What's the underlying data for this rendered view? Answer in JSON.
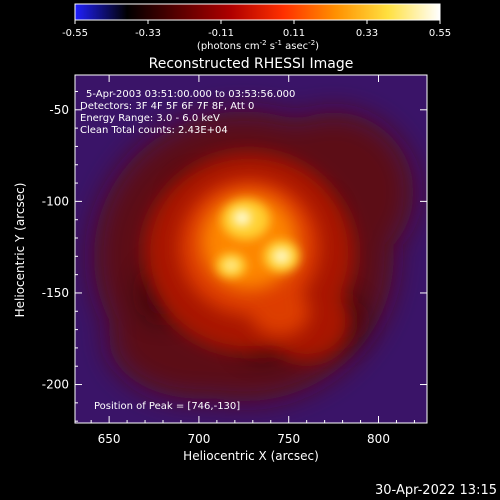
{
  "colorbar": {
    "ticks": [
      "-0.55",
      "-0.33",
      "-0.11",
      "0.11",
      "0.33",
      "0.55"
    ],
    "units_prefix": "(photons cm",
    "units_exp1": "-2",
    "units_mid": " s",
    "units_exp2": "-1",
    "units_mid2": " asec",
    "units_exp3": "-2",
    "units_suffix": ")",
    "colors": [
      "#2020ff",
      "#000000",
      "#5a0000",
      "#b00000",
      "#ff3000",
      "#ff9000",
      "#ffe040",
      "#ffffff"
    ]
  },
  "plot": {
    "title": "Reconstructed RHESSI Image",
    "annotations": [
      "5-Apr-2003 03:51:00.000 to 03:53:56.000",
      "Detectors: 3F 4F 5F 6F 7F 8F, Att 0",
      "Energy Range: 3.0 - 6.0 keV",
      "Clean     Total counts: 2.43E+04"
    ],
    "peak_label": "Position of Peak = [746,-130]"
  },
  "footer": {
    "timestamp": "30-Apr-2022 13:15"
  },
  "chart_data": {
    "type": "heatmap",
    "title": "Reconstructed RHESSI Image",
    "xlabel": "Heliocentric X (arcsec)",
    "ylabel": "Heliocentric Y (arcsec)",
    "xlim": [
      631,
      827
    ],
    "ylim": [
      -221,
      -31
    ],
    "xticks": [
      650,
      700,
      750,
      800
    ],
    "yticks": [
      -50,
      -100,
      -150,
      -200
    ],
    "colorbar_range": [
      -0.55,
      0.55
    ],
    "peak": [
      746,
      -130
    ],
    "sources": [
      {
        "x": 724,
        "y": -109,
        "rel": 1.0
      },
      {
        "x": 746,
        "y": -130,
        "rel": 0.95
      },
      {
        "x": 718,
        "y": -135,
        "rel": 0.7
      }
    ]
  }
}
